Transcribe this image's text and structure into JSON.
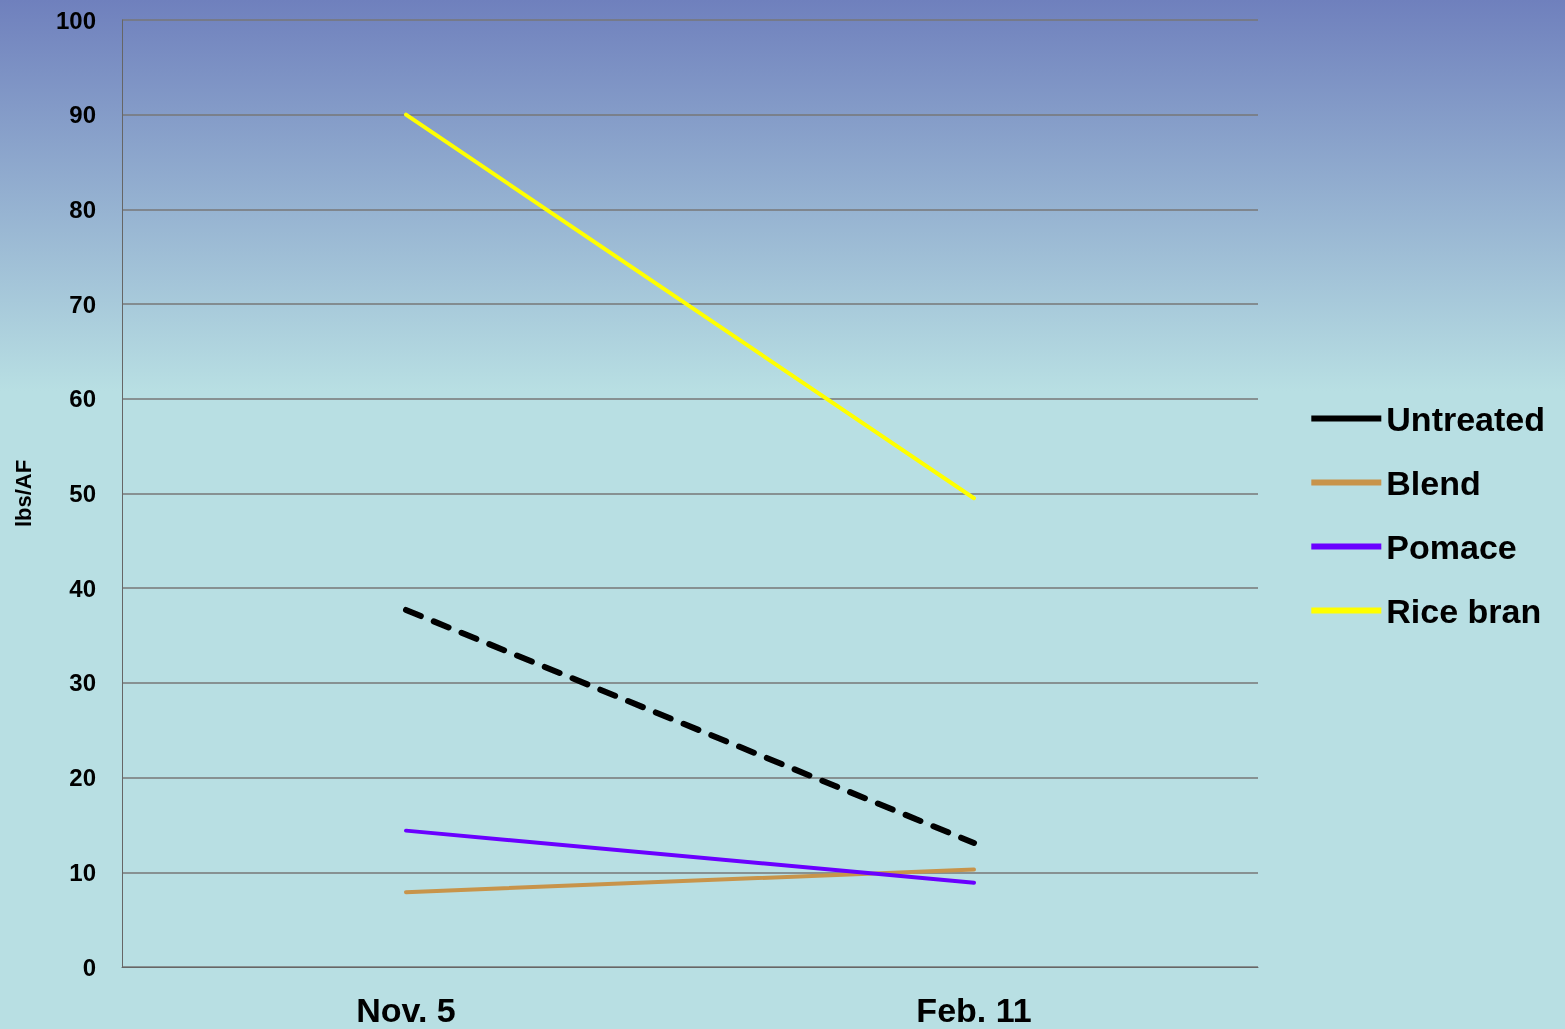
{
  "chart_data": {
    "type": "line",
    "ylabel": "lbs/AF",
    "categories": [
      "Nov. 5",
      "Feb. 11"
    ],
    "ylim": [
      0,
      100
    ],
    "yticks": [
      0,
      10,
      20,
      30,
      40,
      50,
      60,
      70,
      80,
      90,
      100
    ],
    "grid": "y",
    "legend": "right",
    "marker": "none",
    "series": [
      {
        "name": "Untreated",
        "color": "#000000",
        "line_style": "dashed",
        "values": [
          37.7,
          13.1
        ]
      },
      {
        "name": "Blend",
        "color": "#c8944a",
        "values": [
          7.9,
          10.3
        ]
      },
      {
        "name": "Pomace",
        "color": "#6a00ff",
        "values": [
          14.4,
          8.9
        ]
      },
      {
        "name": "Rice bran",
        "color": "#ffff00",
        "values": [
          90,
          49.5
        ]
      }
    ]
  }
}
